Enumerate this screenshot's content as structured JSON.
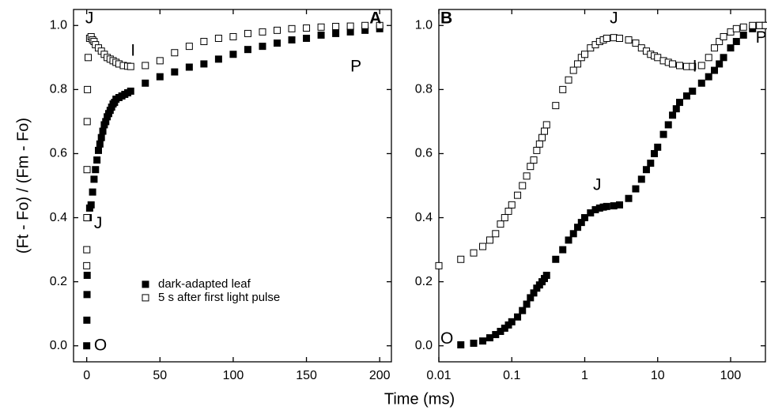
{
  "chart_data": [
    {
      "type": "scatter",
      "ylabel": "(Ft - Fo) / (Fm - Fo)",
      "xlabel": "Time (ms)",
      "xscale": "linear",
      "xlim": [
        -9,
        208
      ],
      "ylim": [
        -0.05,
        1.05
      ],
      "xticks": [
        0,
        50,
        100,
        150,
        200
      ],
      "yticks": [
        {
          "value": 0,
          "label": "0.0"
        },
        {
          "value": 0.2,
          "label": "0.2"
        },
        {
          "value": 0.4,
          "label": "0.4"
        },
        {
          "value": 0.6,
          "label": "0.6"
        },
        {
          "value": 0.8,
          "label": "0.8"
        },
        {
          "value": 1,
          "label": "1.0"
        }
      ],
      "legend": "lower center",
      "series": [
        {
          "name": "dark-adapted leaf",
          "color": "#000000",
          "marker": "filled",
          "x": [
            0,
            0.1,
            0.2,
            0.3,
            1,
            2,
            3,
            4,
            5,
            6,
            7,
            8,
            9,
            10,
            11,
            12,
            13,
            14,
            15,
            16,
            17,
            18,
            19,
            20,
            22,
            24,
            26,
            28,
            30,
            40,
            50,
            60,
            70,
            80,
            90,
            100,
            110,
            120,
            130,
            140,
            150,
            160,
            170,
            180,
            190,
            200
          ],
          "values": [
            0,
            0.08,
            0.16,
            0.22,
            0.4,
            0.43,
            0.44,
            0.48,
            0.52,
            0.55,
            0.58,
            0.61,
            0.63,
            0.65,
            0.67,
            0.69,
            0.7,
            0.715,
            0.725,
            0.735,
            0.745,
            0.755,
            0.76,
            0.77,
            0.775,
            0.78,
            0.785,
            0.79,
            0.795,
            0.82,
            0.84,
            0.855,
            0.87,
            0.88,
            0.895,
            0.91,
            0.925,
            0.935,
            0.945,
            0.955,
            0.96,
            0.97,
            0.975,
            0.98,
            0.985,
            0.99
          ]
        },
        {
          "name": "5 s after first light pulse",
          "color": "#000000",
          "marker": "open",
          "x": [
            0,
            0.05,
            0.1,
            0.2,
            0.3,
            0.5,
            1,
            2,
            3,
            4,
            5,
            6,
            8,
            10,
            12,
            14,
            16,
            18,
            20,
            22,
            25,
            28,
            30,
            40,
            50,
            60,
            70,
            80,
            90,
            100,
            110,
            120,
            130,
            140,
            150,
            160,
            170,
            180,
            190,
            200
          ],
          "values": [
            0.25,
            0.3,
            0.4,
            0.55,
            0.7,
            0.8,
            0.9,
            0.96,
            0.965,
            0.955,
            0.95,
            0.94,
            0.93,
            0.92,
            0.91,
            0.9,
            0.895,
            0.89,
            0.885,
            0.88,
            0.875,
            0.873,
            0.872,
            0.875,
            0.89,
            0.915,
            0.935,
            0.95,
            0.96,
            0.965,
            0.975,
            0.98,
            0.985,
            0.99,
            0.992,
            0.995,
            0.997,
            0.998,
            1,
            1
          ]
        }
      ],
      "annotations": [
        {
          "text": "A",
          "x": 193,
          "y": 1.02,
          "bold": true
        },
        {
          "text": "J",
          "x": -1,
          "y": 1.02
        },
        {
          "text": "I",
          "x": 30,
          "y": 0.92
        },
        {
          "text": "P",
          "x": 180,
          "y": 0.87
        },
        {
          "text": "J",
          "x": 5,
          "y": 0.38
        },
        {
          "text": "O",
          "x": 5,
          "y": 0
        }
      ]
    },
    {
      "type": "scatter",
      "xscale": "log",
      "xlim": [
        0.01,
        300
      ],
      "ylim": [
        -0.05,
        1.05
      ],
      "xticks": [
        0.01,
        0.1,
        1,
        10,
        100
      ],
      "yticks": [
        {
          "value": 0,
          "label": "0.0"
        },
        {
          "value": 0.2,
          "label": "0.2"
        },
        {
          "value": 0.4,
          "label": "0.4"
        },
        {
          "value": 0.6,
          "label": "0.6"
        },
        {
          "value": 0.8,
          "label": "0.8"
        },
        {
          "value": 1,
          "label": "1.0"
        }
      ],
      "series": [
        {
          "color": "#000000",
          "marker": "filled",
          "x": [
            0.02,
            0.03,
            0.04,
            0.05,
            0.06,
            0.07,
            0.08,
            0.09,
            0.1,
            0.12,
            0.14,
            0.16,
            0.18,
            0.2,
            0.22,
            0.24,
            0.26,
            0.28,
            0.3,
            0.4,
            0.5,
            0.6,
            0.7,
            0.8,
            0.9,
            1,
            1.2,
            1.4,
            1.6,
            1.8,
            2,
            2.5,
            3,
            4,
            5,
            6,
            7,
            8,
            9,
            10,
            12,
            14,
            16,
            18,
            20,
            25,
            30,
            40,
            50,
            60,
            70,
            80,
            100,
            120,
            150,
            200,
            250,
            300
          ],
          "values": [
            0.003,
            0.008,
            0.015,
            0.025,
            0.035,
            0.045,
            0.055,
            0.065,
            0.075,
            0.09,
            0.11,
            0.13,
            0.15,
            0.165,
            0.18,
            0.19,
            0.2,
            0.21,
            0.22,
            0.27,
            0.3,
            0.33,
            0.35,
            0.37,
            0.385,
            0.4,
            0.415,
            0.425,
            0.43,
            0.433,
            0.435,
            0.437,
            0.44,
            0.46,
            0.49,
            0.52,
            0.55,
            0.57,
            0.6,
            0.62,
            0.66,
            0.69,
            0.72,
            0.74,
            0.76,
            0.78,
            0.795,
            0.82,
            0.84,
            0.86,
            0.88,
            0.9,
            0.93,
            0.95,
            0.97,
            0.99,
            1,
            1
          ]
        },
        {
          "color": "#000000",
          "marker": "open",
          "x": [
            0.01,
            0.02,
            0.03,
            0.04,
            0.05,
            0.06,
            0.07,
            0.08,
            0.09,
            0.1,
            0.12,
            0.14,
            0.16,
            0.18,
            0.2,
            0.22,
            0.24,
            0.26,
            0.28,
            0.3,
            0.4,
            0.5,
            0.6,
            0.7,
            0.8,
            0.9,
            1,
            1.2,
            1.4,
            1.6,
            1.8,
            2,
            2.5,
            3,
            4,
            5,
            6,
            7,
            8,
            9,
            10,
            12,
            14,
            16,
            20,
            25,
            30,
            40,
            50,
            60,
            70,
            80,
            100,
            120,
            150,
            200,
            250,
            300
          ],
          "values": [
            0.25,
            0.27,
            0.29,
            0.31,
            0.33,
            0.35,
            0.38,
            0.4,
            0.42,
            0.44,
            0.47,
            0.5,
            0.53,
            0.56,
            0.58,
            0.61,
            0.63,
            0.65,
            0.67,
            0.69,
            0.75,
            0.8,
            0.83,
            0.86,
            0.88,
            0.9,
            0.91,
            0.93,
            0.94,
            0.95,
            0.955,
            0.96,
            0.962,
            0.96,
            0.955,
            0.945,
            0.93,
            0.92,
            0.91,
            0.905,
            0.9,
            0.89,
            0.885,
            0.88,
            0.875,
            0.872,
            0.872,
            0.875,
            0.9,
            0.93,
            0.95,
            0.965,
            0.98,
            0.99,
            0.995,
            1,
            1,
            1
          ]
        }
      ],
      "annotations": [
        {
          "text": "B",
          "x": 0.0105,
          "y": 1.02,
          "bold": true
        },
        {
          "text": "J",
          "x": 2.2,
          "y": 1.02
        },
        {
          "text": "I",
          "x": 30,
          "y": 0.87
        },
        {
          "text": "P",
          "x": 220,
          "y": 0.96
        },
        {
          "text": "J",
          "x": 1.3,
          "y": 0.5
        },
        {
          "text": "O",
          "x": 0.0105,
          "y": 0.02
        }
      ]
    }
  ]
}
